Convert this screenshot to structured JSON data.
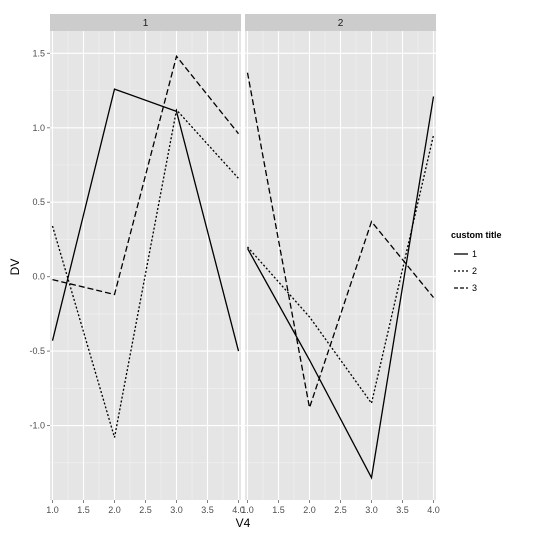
{
  "chart_data": {
    "type": "line",
    "xlabel": "V4",
    "ylabel": "DV",
    "xlim": [
      0.96,
      4.04
    ],
    "ylim": [
      -1.5,
      1.65
    ],
    "x_ticks": [
      1.0,
      1.5,
      2.0,
      2.5,
      3.0,
      3.5,
      4.0
    ],
    "x_tick_labels": [
      "1.0",
      "1.5",
      "2.0",
      "2.5",
      "3.0",
      "3.5",
      "4.0"
    ],
    "y_ticks": [
      -1.0,
      -0.5,
      0.0,
      0.5,
      1.0,
      1.5
    ],
    "y_tick_labels": [
      "-1.0",
      "-0.5",
      "0.0",
      "0.5",
      "1.0",
      "1.5"
    ],
    "grid": true,
    "legend": {
      "title": "custom title",
      "position": "right",
      "entries": [
        "1",
        "2",
        "3"
      ]
    },
    "facets": [
      {
        "label": "1",
        "series": [
          {
            "name": "1",
            "x": [
              1,
              2,
              3,
              4
            ],
            "y": [
              -0.43,
              1.26,
              1.11,
              -0.5
            ]
          },
          {
            "name": "2",
            "x": [
              1,
              2,
              3,
              4
            ],
            "y": [
              0.34,
              -1.08,
              1.12,
              0.66
            ]
          },
          {
            "name": "3",
            "x": [
              1,
              2,
              3,
              4
            ],
            "y": [
              -0.02,
              -0.12,
              1.48,
              0.96
            ]
          }
        ]
      },
      {
        "label": "2",
        "series": [
          {
            "name": "1",
            "x": [
              1,
              2,
              3,
              4
            ],
            "y": [
              0.19,
              -0.56,
              -1.35,
              1.21
            ]
          },
          {
            "name": "2",
            "x": [
              1,
              2,
              3,
              4
            ],
            "y": [
              0.2,
              -0.27,
              -0.85,
              0.95
            ]
          },
          {
            "name": "3",
            "x": [
              1,
              2,
              3,
              4
            ],
            "y": [
              1.37,
              -0.88,
              0.37,
              -0.14
            ]
          }
        ]
      }
    ],
    "line_styles": {
      "1": "solid",
      "2": "dotted",
      "3": "dashed"
    },
    "colors": {
      "panel": "#e5e5e5",
      "strip": "#cccccc",
      "line": "#000000",
      "grid_major": "#ffffff",
      "grid_minor": "#f2f2f2"
    }
  }
}
